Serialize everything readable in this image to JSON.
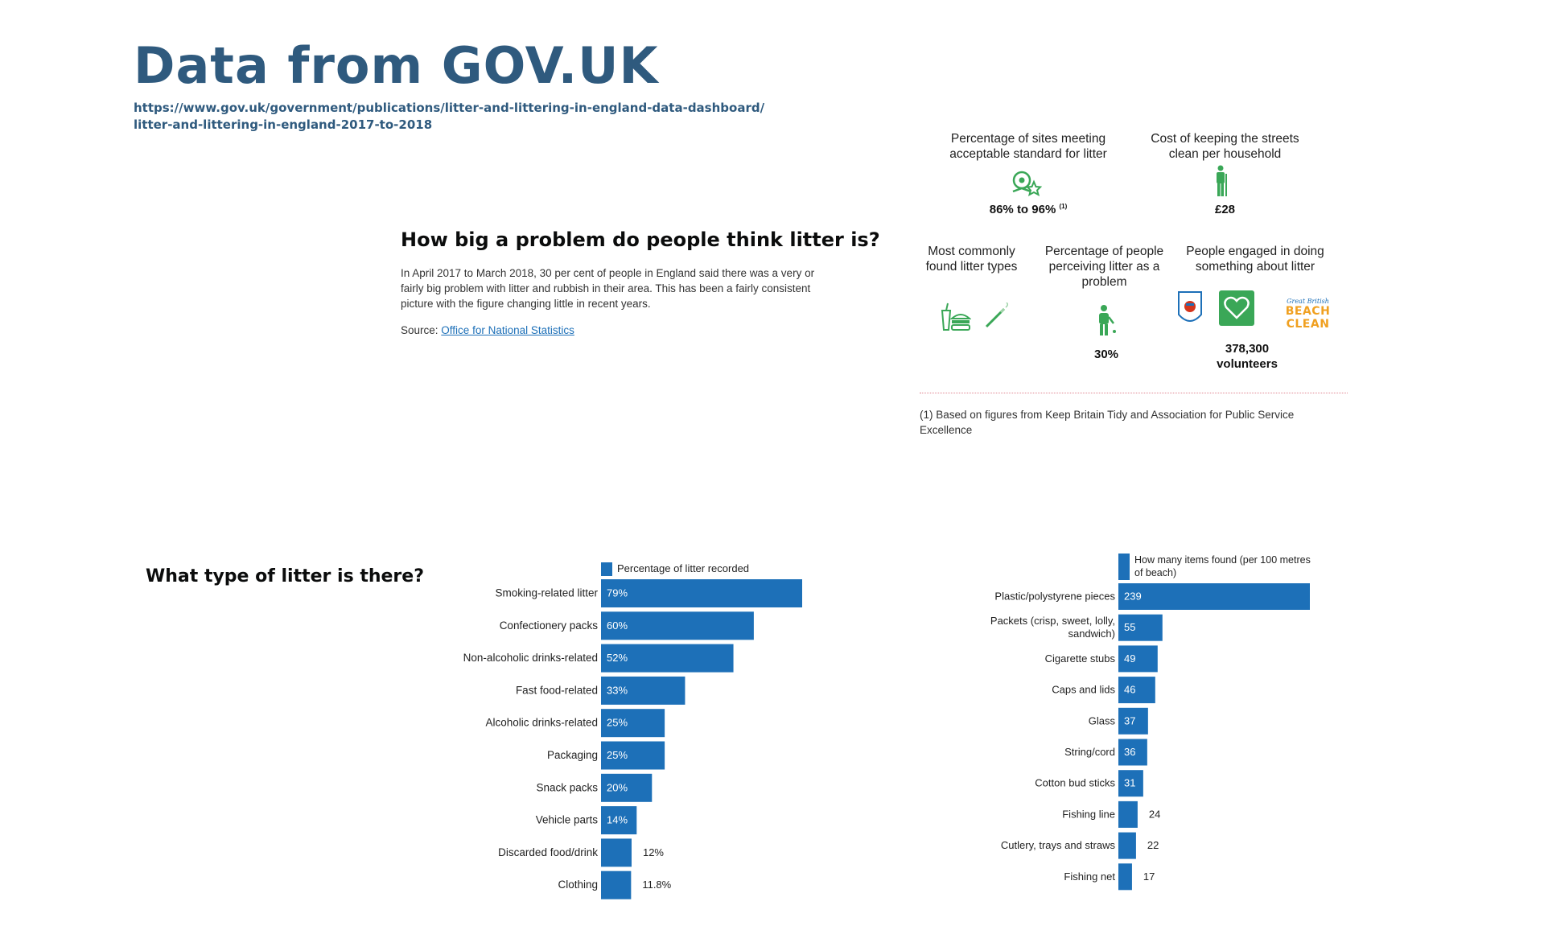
{
  "header": {
    "title": "Data from GOV.UK",
    "source_url_line1": "https://www.gov.uk/government/publications/litter-and-littering-in-england-data-dashboard/",
    "source_url_line2": "litter-and-littering-in-england-2017-to-2018"
  },
  "problem_section": {
    "heading": "How big a problem do people think litter is?",
    "body": "In April 2017 to March 2018, 30 per cent of people in England said there was a very or fairly big problem with litter and rubbish in their area. This has been a fairly consistent picture with the figure changing little in recent years.",
    "source_label": "Source:",
    "source_link": "Office for National Statistics"
  },
  "infographic": {
    "sites": {
      "label": "Percentage of sites meeting acceptable standard for litter",
      "value": "86% to 96%",
      "note_marker": "(1)",
      "icon": "location-star-icon"
    },
    "cost": {
      "label": "Cost of keeping the streets clean per household",
      "value": "£28",
      "icon": "street-cleaner-icon"
    },
    "types": {
      "label": "Most commonly found litter types",
      "icons": [
        "fast-food-icon",
        "cigarette-icon"
      ]
    },
    "perceiving": {
      "label": "Percentage of people perceiving litter as a problem",
      "value": "30%",
      "icon": "person-littering-icon"
    },
    "engaged": {
      "label": "People engaged in doing something about litter",
      "value_line1": "378,300",
      "value_line2": "volunteers",
      "logo_text_top": "Great British",
      "logo_text_main": "BEACH CLEAN",
      "icons": [
        "keep-britain-tidy-logo",
        "heart-logo",
        "beach-clean-logo"
      ]
    },
    "footnote": "(1) Based on figures from Keep Britain Tidy and Association for Public Service Excellence",
    "colors": {
      "green": "#3aa757",
      "divider": "#e0848f"
    }
  },
  "litter_section": {
    "heading": "What type of litter is there?"
  },
  "chart_data": [
    {
      "type": "bar",
      "orientation": "horizontal",
      "legend": "Percentage of litter recorded",
      "categories": [
        "Smoking-related litter",
        "Confectionery packs",
        "Non-alcoholic drinks-related",
        "Fast food-related",
        "Alcoholic drinks-related",
        "Packaging",
        "Snack packs",
        "Vehicle parts",
        "Discarded food/drink",
        "Clothing"
      ],
      "values": [
        79,
        60,
        52,
        33,
        25,
        25,
        20,
        14,
        12,
        11.8
      ],
      "value_labels": [
        "79%",
        "60%",
        "52%",
        "33%",
        "25%",
        "25%",
        "20%",
        "14%",
        "12%",
        "11.8%"
      ],
      "xlim": [
        0,
        79
      ],
      "color": "#1d70b8"
    },
    {
      "type": "bar",
      "orientation": "horizontal",
      "legend_line1": "How many items found (per 100 metres",
      "legend_line2": "of beach)",
      "categories": [
        "Plastic/polystyrene pieces",
        "Packets (crisp, sweet, lolly, sandwich)",
        "Cigarette stubs",
        "Caps and lids",
        "Glass",
        "String/cord",
        "Cotton bud sticks",
        "Fishing line",
        "Cutlery, trays and straws",
        "Fishing net"
      ],
      "category_lines": [
        [
          "Plastic/polystyrene pieces"
        ],
        [
          "Packets (crisp, sweet, lolly,",
          "sandwich)"
        ],
        [
          "Cigarette stubs"
        ],
        [
          "Caps and lids"
        ],
        [
          "Glass"
        ],
        [
          "String/cord"
        ],
        [
          "Cotton bud sticks"
        ],
        [
          "Fishing line"
        ],
        [
          "Cutlery, trays and straws"
        ],
        [
          "Fishing net"
        ]
      ],
      "values": [
        239,
        55,
        49,
        46,
        37,
        36,
        31,
        24,
        22,
        17
      ],
      "value_labels": [
        "239",
        "55",
        "49",
        "46",
        "37",
        "36",
        "31",
        "24",
        "22",
        "17"
      ],
      "xlim": [
        0,
        239
      ],
      "color": "#1d70b8"
    }
  ]
}
